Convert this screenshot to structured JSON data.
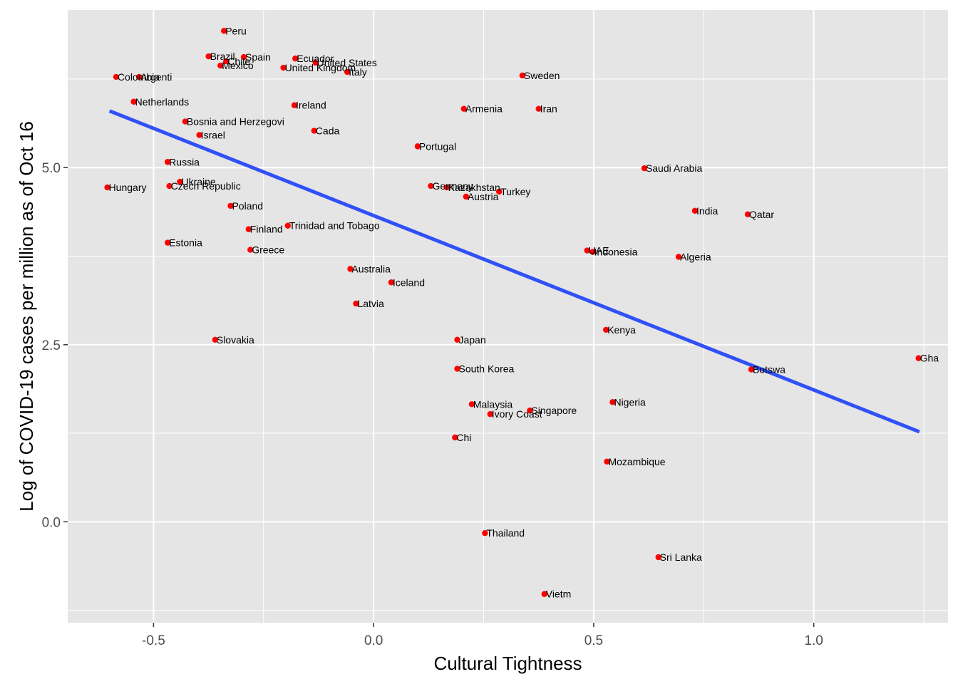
{
  "chart_data": {
    "type": "scatter",
    "title": "",
    "xlabel": "Cultural Tightness",
    "ylabel": "Log of COVID-19 cases per million as of Oct 16",
    "xlim": [
      -0.695,
      1.305
    ],
    "ylim": [
      -1.425,
      7.225
    ],
    "x_ticks": [
      -0.5,
      0.0,
      0.5,
      1.0
    ],
    "x_tick_labels": [
      "-0.5",
      "0.0",
      "0.5",
      "1.0"
    ],
    "y_ticks": [
      0.0,
      2.5,
      5.0
    ],
    "y_tick_labels": [
      "0.0",
      "2.5",
      "5.0"
    ],
    "grid": true,
    "panel_background": "#e5e5e5",
    "grid_color": "#ffffff",
    "point_color": "#ff0000",
    "line_color": "#3050f8",
    "regression_line": {
      "x": [
        -0.6,
        1.24
      ],
      "y": [
        5.8,
        1.27
      ]
    },
    "points": [
      {
        "label": "Peru",
        "x": -0.34,
        "y": 6.93
      },
      {
        "label": "Brazil",
        "x": -0.375,
        "y": 6.57
      },
      {
        "label": "Chile",
        "x": -0.335,
        "y": 6.5
      },
      {
        "label": "Spain",
        "x": -0.295,
        "y": 6.56
      },
      {
        "label": "Mexico",
        "x": -0.348,
        "y": 6.44
      },
      {
        "label": "Ecuador",
        "x": -0.178,
        "y": 6.54
      },
      {
        "label": "United States",
        "x": -0.132,
        "y": 6.48
      },
      {
        "label": "United Kingdom",
        "x": -0.205,
        "y": 6.41
      },
      {
        "label": "Italy",
        "x": -0.06,
        "y": 6.35
      },
      {
        "label": "Colombia",
        "x": -0.585,
        "y": 6.28
      },
      {
        "label": "Argenti",
        "x": -0.533,
        "y": 6.28
      },
      {
        "label": "Sweden",
        "x": 0.338,
        "y": 6.3
      },
      {
        "label": "Netherlands",
        "x": -0.545,
        "y": 5.93
      },
      {
        "label": "Ireland",
        "x": -0.18,
        "y": 5.88
      },
      {
        "label": "Armenia",
        "x": 0.205,
        "y": 5.83
      },
      {
        "label": "Iran",
        "x": 0.375,
        "y": 5.83
      },
      {
        "label": "Bosnia and Herzegovi",
        "x": -0.428,
        "y": 5.65
      },
      {
        "label": "Israel",
        "x": -0.396,
        "y": 5.46
      },
      {
        "label": "Cada",
        "x": -0.135,
        "y": 5.52
      },
      {
        "label": "Portugal",
        "x": 0.1,
        "y": 5.3
      },
      {
        "label": "Russia",
        "x": -0.468,
        "y": 5.08
      },
      {
        "label": "Saudi Arabia",
        "x": 0.615,
        "y": 4.99
      },
      {
        "label": "Hungary",
        "x": -0.605,
        "y": 4.72
      },
      {
        "label": "Ukraine",
        "x": -0.44,
        "y": 4.8
      },
      {
        "label": "Czech Republic",
        "x": -0.464,
        "y": 4.74
      },
      {
        "label": "Germany",
        "x": 0.13,
        "y": 4.74
      },
      {
        "label": "Kazakhstan",
        "x": 0.166,
        "y": 4.72
      },
      {
        "label": "Turkey",
        "x": 0.285,
        "y": 4.66
      },
      {
        "label": "Austria",
        "x": 0.21,
        "y": 4.59
      },
      {
        "label": "Poland",
        "x": -0.325,
        "y": 4.46
      },
      {
        "label": "India",
        "x": 0.73,
        "y": 4.39
      },
      {
        "label": "Qatar",
        "x": 0.85,
        "y": 4.34
      },
      {
        "label": "Trinidad and Tobago",
        "x": -0.195,
        "y": 4.18
      },
      {
        "label": "Finland",
        "x": -0.284,
        "y": 4.13
      },
      {
        "label": "Estonia",
        "x": -0.468,
        "y": 3.94
      },
      {
        "label": "Greece",
        "x": -0.28,
        "y": 3.84
      },
      {
        "label": "UAE",
        "x": 0.485,
        "y": 3.83
      },
      {
        "label": "Indonesia",
        "x": 0.498,
        "y": 3.81
      },
      {
        "label": "Algeria",
        "x": 0.693,
        "y": 3.74
      },
      {
        "label": "Australia",
        "x": -0.053,
        "y": 3.57
      },
      {
        "label": "Iceland",
        "x": 0.04,
        "y": 3.38
      },
      {
        "label": "Latvia",
        "x": -0.04,
        "y": 3.08
      },
      {
        "label": "Kenya",
        "x": 0.528,
        "y": 2.71
      },
      {
        "label": "Slovakia",
        "x": -0.36,
        "y": 2.57
      },
      {
        "label": "Japan",
        "x": 0.19,
        "y": 2.57
      },
      {
        "label": "Gha",
        "x": 1.238,
        "y": 2.31
      },
      {
        "label": "Botswa",
        "x": 0.858,
        "y": 2.15
      },
      {
        "label": "South Korea",
        "x": 0.19,
        "y": 2.16
      },
      {
        "label": "Malaysia",
        "x": 0.223,
        "y": 1.66
      },
      {
        "label": "Nigeria",
        "x": 0.543,
        "y": 1.69
      },
      {
        "label": "Singapore",
        "x": 0.355,
        "y": 1.57
      },
      {
        "label": "Ivory Coast",
        "x": 0.265,
        "y": 1.52
      },
      {
        "label": "Chi",
        "x": 0.185,
        "y": 1.19
      },
      {
        "label": "Mozambique",
        "x": 0.53,
        "y": 0.85
      },
      {
        "label": "Thailand",
        "x": 0.253,
        "y": -0.16
      },
      {
        "label": "Sri Lanka",
        "x": 0.647,
        "y": -0.5
      },
      {
        "label": "Vietm",
        "x": 0.388,
        "y": -1.02
      }
    ]
  }
}
